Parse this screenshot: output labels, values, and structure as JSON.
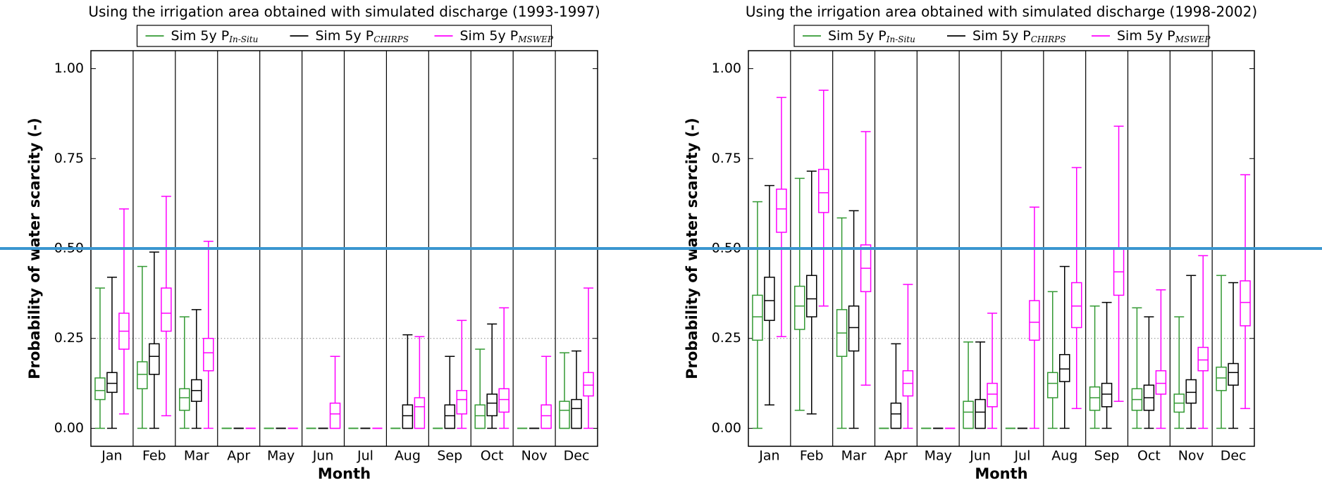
{
  "chart_data": [
    {
      "type": "box",
      "title": "Using the irrigation area obtained with simulated discharge (1993-1997)",
      "xlabel": "Month",
      "ylabel": "Probability of water scarcity (-)",
      "categories": [
        "Jan",
        "Feb",
        "Mar",
        "Apr",
        "May",
        "Jun",
        "Jul",
        "Aug",
        "Sep",
        "Oct",
        "Nov",
        "Dec"
      ],
      "ylim": [
        -0.05,
        1.05
      ],
      "yticks": [
        {
          "value": 0,
          "label": "0.00"
        },
        0.25,
        {
          "value": 0.5,
          "label": "0.50"
        },
        0.75,
        {
          "value": 1,
          "label": "1.00"
        }
      ],
      "threshold": 0.25,
      "series": [
        {
          "name": "Sim 5y P",
          "subscript": "In-Situ",
          "color": "#339933",
          "values": [
            [
              0,
              0.08,
              0.105,
              0.14,
              0.39
            ],
            [
              0,
              0.11,
              0.15,
              0.185,
              0.45
            ],
            [
              0,
              0.05,
              0.085,
              0.11,
              0.31
            ],
            [
              0,
              0,
              0,
              0,
              0
            ],
            [
              0,
              0,
              0,
              0,
              0
            ],
            [
              0,
              0,
              0,
              0,
              0
            ],
            [
              0,
              0,
              0,
              0,
              0
            ],
            [
              0,
              0,
              0,
              0,
              0
            ],
            [
              0,
              0,
              0,
              0,
              0
            ],
            [
              0,
              0,
              0.035,
              0.065,
              0.22
            ],
            [
              0,
              0,
              0,
              0,
              0
            ],
            [
              0,
              0,
              0.05,
              0.075,
              0.21
            ]
          ]
        },
        {
          "name": "Sim 5y P",
          "subscript": "CHIRPS",
          "color": "#000000",
          "values": [
            [
              0,
              0.1,
              0.125,
              0.155,
              0.42
            ],
            [
              0,
              0.15,
              0.2,
              0.235,
              0.49
            ],
            [
              0,
              0.075,
              0.105,
              0.135,
              0.33
            ],
            [
              0,
              0,
              0,
              0,
              0
            ],
            [
              0,
              0,
              0,
              0,
              0
            ],
            [
              0,
              0,
              0,
              0,
              0
            ],
            [
              0,
              0,
              0,
              0,
              0
            ],
            [
              0,
              0,
              0.035,
              0.065,
              0.26
            ],
            [
              0,
              0,
              0.035,
              0.065,
              0.2
            ],
            [
              0,
              0.035,
              0.07,
              0.095,
              0.29
            ],
            [
              0,
              0,
              0,
              0,
              0
            ],
            [
              0,
              0,
              0.055,
              0.08,
              0.215
            ]
          ]
        },
        {
          "name": "Sim 5y P",
          "subscript": "MSWEP",
          "color": "#ff00ff",
          "values": [
            [
              0.04,
              0.22,
              0.27,
              0.32,
              0.61
            ],
            [
              0.035,
              0.27,
              0.32,
              0.39,
              0.645
            ],
            [
              0,
              0.16,
              0.21,
              0.25,
              0.52
            ],
            [
              0,
              0,
              0,
              0,
              0
            ],
            [
              0,
              0,
              0,
              0,
              0
            ],
            [
              0,
              0,
              0.04,
              0.07,
              0.2
            ],
            [
              0,
              0,
              0,
              0,
              0
            ],
            [
              0,
              0,
              0.06,
              0.085,
              0.255
            ],
            [
              0,
              0.04,
              0.08,
              0.105,
              0.3
            ],
            [
              0,
              0.045,
              0.08,
              0.11,
              0.335
            ],
            [
              0,
              0,
              0.035,
              0.065,
              0.2
            ],
            [
              0,
              0.09,
              0.12,
              0.155,
              0.39
            ]
          ]
        }
      ]
    },
    {
      "type": "box",
      "title": "Using the irrigation area obtained with simulated discharge (1998-2002)",
      "xlabel": "Month",
      "ylabel": "Probability of water scarcity (-)",
      "categories": [
        "Jan",
        "Feb",
        "Mar",
        "Apr",
        "May",
        "Jun",
        "Jul",
        "Aug",
        "Sep",
        "Oct",
        "Nov",
        "Dec"
      ],
      "ylim": [
        -0.05,
        1.05
      ],
      "yticks": [
        {
          "value": 0,
          "label": "0.00"
        },
        0.25,
        {
          "value": 0.5,
          "label": "0.50"
        },
        0.75,
        {
          "value": 1,
          "label": "1.00"
        }
      ],
      "threshold": 0.25,
      "series": [
        {
          "name": "Sim 5y P",
          "subscript": "In-Situ",
          "color": "#339933",
          "values": [
            [
              0,
              0.245,
              0.31,
              0.37,
              0.63
            ],
            [
              0.05,
              0.275,
              0.34,
              0.395,
              0.695
            ],
            [
              0,
              0.2,
              0.265,
              0.33,
              0.585
            ],
            [
              0,
              0,
              0,
              0,
              0
            ],
            [
              0,
              0,
              0,
              0,
              0
            ],
            [
              0,
              0,
              0.045,
              0.075,
              0.24
            ],
            [
              0,
              0,
              0,
              0,
              0
            ],
            [
              0,
              0.085,
              0.125,
              0.155,
              0.38
            ],
            [
              0,
              0.05,
              0.085,
              0.115,
              0.34
            ],
            [
              0,
              0.05,
              0.08,
              0.11,
              0.335
            ],
            [
              0,
              0.045,
              0.07,
              0.095,
              0.31
            ],
            [
              0,
              0.105,
              0.14,
              0.17,
              0.425
            ]
          ]
        },
        {
          "name": "Sim 5y P",
          "subscript": "CHIRPS",
          "color": "#000000",
          "values": [
            [
              0.065,
              0.3,
              0.355,
              0.42,
              0.675
            ],
            [
              0.04,
              0.31,
              0.36,
              0.425,
              0.715
            ],
            [
              0,
              0.215,
              0.28,
              0.34,
              0.605
            ],
            [
              0,
              0,
              0.04,
              0.07,
              0.235
            ],
            [
              0,
              0,
              0,
              0,
              0
            ],
            [
              0,
              0,
              0.045,
              0.08,
              0.24
            ],
            [
              0,
              0,
              0,
              0,
              0
            ],
            [
              0,
              0.13,
              0.165,
              0.205,
              0.45
            ],
            [
              0,
              0.06,
              0.095,
              0.125,
              0.35
            ],
            [
              0,
              0.05,
              0.085,
              0.12,
              0.31
            ],
            [
              0,
              0.07,
              0.1,
              0.135,
              0.425
            ],
            [
              0,
              0.12,
              0.155,
              0.18,
              0.405
            ]
          ]
        },
        {
          "name": "Sim 5y P",
          "subscript": "MSWEP",
          "color": "#ff00ff",
          "values": [
            [
              0.255,
              0.545,
              0.61,
              0.665,
              0.92
            ],
            [
              0.34,
              0.6,
              0.655,
              0.72,
              0.94
            ],
            [
              0.12,
              0.38,
              0.445,
              0.51,
              0.825
            ],
            [
              0,
              0.09,
              0.125,
              0.16,
              0.4
            ],
            [
              0,
              0,
              0,
              0,
              0
            ],
            [
              0,
              0.06,
              0.095,
              0.125,
              0.32
            ],
            [
              0,
              0.245,
              0.295,
              0.355,
              0.615
            ],
            [
              0.055,
              0.28,
              0.34,
              0.405,
              0.725
            ],
            [
              0.075,
              0.37,
              0.435,
              0.5,
              0.84
            ],
            [
              0,
              0.095,
              0.125,
              0.16,
              0.385
            ],
            [
              0,
              0.16,
              0.19,
              0.225,
              0.48
            ],
            [
              0.055,
              0.285,
              0.35,
              0.41,
              0.705
            ]
          ]
        }
      ]
    }
  ],
  "reference_line": {
    "value": 0.5,
    "color": "#3a96d0"
  }
}
